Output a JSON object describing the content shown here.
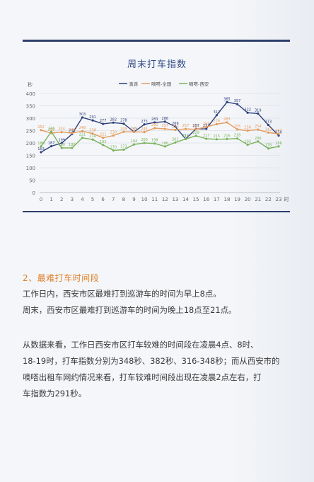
{
  "colors": {
    "rule": "#2c3e6b",
    "title": "#2f4a86",
    "accent": "#e0812b"
  },
  "chart_data": {
    "type": "line",
    "title": "周末打车指数",
    "ylabel": "秒",
    "xlabel": "时",
    "x": [
      0,
      1,
      2,
      3,
      4,
      5,
      6,
      7,
      8,
      9,
      10,
      11,
      12,
      13,
      14,
      15,
      16,
      17,
      18,
      19,
      20,
      21,
      22,
      23
    ],
    "ylim": [
      0,
      400
    ],
    "yticks": [
      0,
      50,
      100,
      150,
      200,
      250,
      300,
      350,
      400
    ],
    "legend_position": "top-center",
    "grid": true,
    "series": [
      {
        "name": "滴滴",
        "color": "#2d3f7a",
        "values": [
          163,
          187,
          199,
          236,
          303,
          291,
          277,
          282,
          278,
          245,
          275,
          283,
          286,
          266,
          216,
          257,
          257,
          312,
          365,
          357,
          322,
          319,
          273,
          230
        ],
        "labels": [
          "163",
          "187",
          "199",
          "236",
          "303",
          "291",
          "277",
          "282",
          "278",
          "245",
          "275",
          "283",
          "286",
          "266",
          "216",
          "257",
          "257",
          "312",
          "365",
          "357",
          "322",
          "319",
          "273",
          "230"
        ]
      },
      {
        "name": "嘀嗒-全国",
        "color": "#e59b5c",
        "values": [
          252,
          240,
          244,
          240,
          248,
          238,
          221,
          230,
          245,
          245,
          244,
          260,
          257,
          253,
          257,
          255,
          265,
          276,
          283,
          255,
          250,
          254,
          242,
          237
        ],
        "labels": [
          "252",
          "240",
          "244",
          "240",
          "248",
          "238",
          "221",
          "230",
          "245",
          "245",
          "244",
          "260",
          "257",
          "253",
          "257",
          "255",
          "265",
          "276",
          "283",
          "255",
          "250",
          "254",
          "242",
          "237"
        ]
      },
      {
        "name": "嘀嗒-西安",
        "color": "#7ab35a",
        "values": [
          186,
          246,
          180,
          180,
          221,
          214,
          192,
          170,
          173,
          194,
          200,
          198,
          186,
          202,
          216,
          229,
          217,
          215,
          216,
          218,
          193,
          206,
          178,
          186
        ],
        "labels": [
          "186",
          "246",
          "180",
          "180",
          "221",
          "214",
          "192",
          "170",
          "173",
          "194",
          "200",
          "198",
          "186",
          "202",
          "216",
          "229",
          "217",
          "215",
          "216",
          "218",
          "193",
          "206",
          "178",
          "186"
        ]
      }
    ]
  },
  "section": {
    "heading": "2、最难打车时间段"
  },
  "text": {
    "p1": "工作日内，西安市区最难打到巡游车的时间为早上8点。",
    "p2": "周末，西安市区最难打到巡游车的时间为晚上18点至21点。",
    "p3_lines": [
      "从数据来看，工作日西安市区打车较难的时间段在凌晨4点、8时、",
      "18-19时，打车指数分别为348秒、382秒、316-348秒；而从西安市的",
      "嘀嗒出租车网约情况来看，打车较难时间段出现在凌晨2点左右，打",
      "车指数为291秒。"
    ]
  }
}
